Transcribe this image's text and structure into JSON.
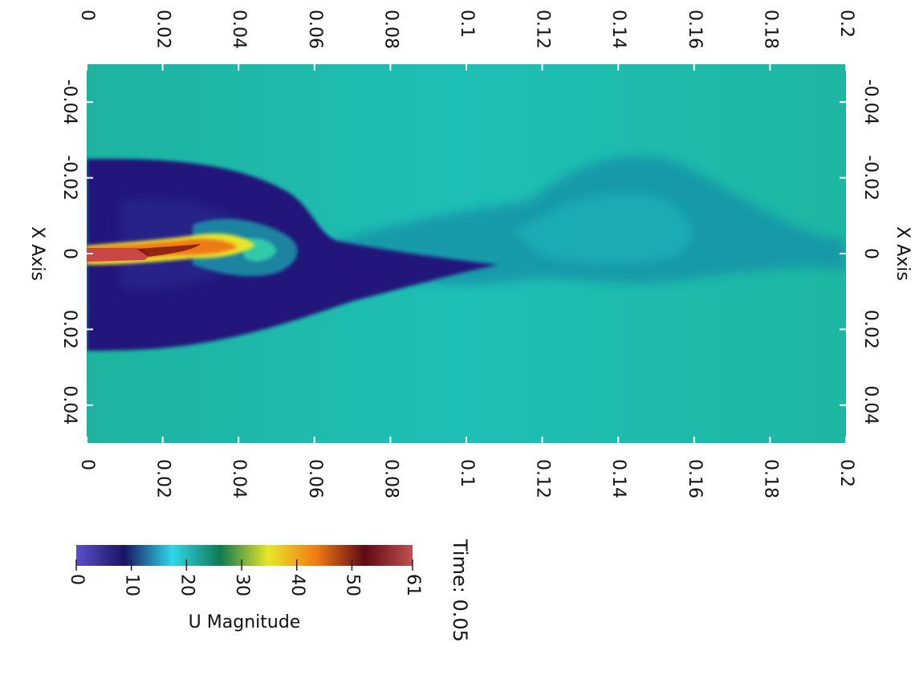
{
  "chart_data": {
    "type": "heatmap",
    "title": "",
    "time_label": "Time: 0.05",
    "x_axis": {
      "label": "X Axis",
      "range": [
        0,
        0.2
      ],
      "ticks": [
        0,
        0.02,
        0.04,
        0.06,
        0.08,
        0.1,
        0.12,
        0.14,
        0.16,
        0.18,
        0.2
      ],
      "tick_labels": [
        "0",
        "0.02",
        "0.04",
        "0.06",
        "0.08",
        "0.1",
        "0.12",
        "0.14",
        "0.16",
        "0.18",
        "0.2"
      ]
    },
    "y_axis": {
      "label": "X Axis",
      "range": [
        -0.05,
        0.05
      ],
      "ticks": [
        -0.04,
        -0.02,
        0,
        0.02,
        0.04
      ],
      "tick_labels": [
        "-0.04",
        "-0.02",
        "0",
        "0.02",
        "0.04"
      ]
    },
    "colorbar": {
      "title": "U Magnitude",
      "range": [
        0,
        61
      ],
      "ticks": [
        0,
        10,
        20,
        30,
        40,
        50,
        61
      ],
      "tick_labels": [
        "0",
        "10",
        "20",
        "30",
        "40",
        "50",
        "61"
      ],
      "colormap": [
        "#5a50c8",
        "#1a1466",
        "#2fd8e8",
        "#0f7a52",
        "#e8e62a",
        "#f07a14",
        "#5e0a14",
        "#c05050"
      ]
    },
    "field": {
      "ambient_value": 19,
      "background_color": "#1eb8a0",
      "jet_color": "#c84848",
      "core_color": "#20197a",
      "wake_color": "#157d8a"
    }
  }
}
